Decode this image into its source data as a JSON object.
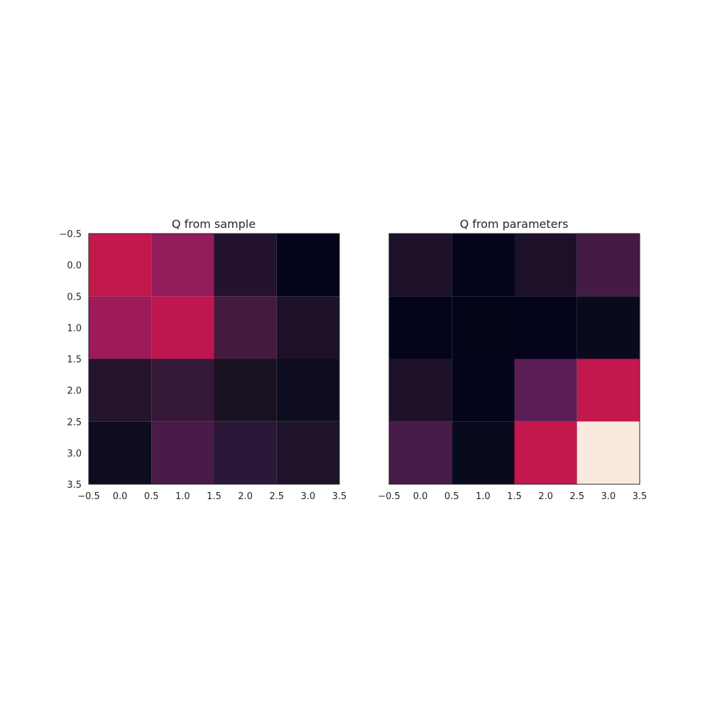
{
  "chart_data": [
    {
      "type": "heatmap",
      "title": "Q from sample",
      "xlim": [
        -0.5,
        3.5
      ],
      "ylim": [
        3.5,
        -0.5
      ],
      "x_ticks": [
        "−0.5",
        "0.0",
        "0.5",
        "1.0",
        "1.5",
        "2.0",
        "2.5",
        "3.0",
        "3.5"
      ],
      "y_ticks": [
        "−0.5",
        "0.0",
        "0.5",
        "1.0",
        "1.5",
        "2.0",
        "2.5",
        "3.0",
        "3.5"
      ],
      "show_y_ticks": true,
      "values": [
        [
          0.6,
          0.48,
          0.15,
          0.02
        ],
        [
          0.52,
          0.58,
          0.25,
          0.12
        ],
        [
          0.15,
          0.22,
          0.1,
          0.07
        ],
        [
          0.05,
          0.26,
          0.17,
          0.12
        ]
      ],
      "colors": [
        [
          "#c2194d",
          "#921b5a",
          "#231331",
          "#04041a"
        ],
        [
          "#9e1b5a",
          "#be1651",
          "#451a41",
          "#1d1229"
        ],
        [
          "#24142c",
          "#351737",
          "#19111f",
          "#0e0c1f"
        ],
        [
          "#0f0c20",
          "#4a1b49",
          "#2b1738",
          "#1f132c"
        ]
      ]
    },
    {
      "type": "heatmap",
      "title": "Q from parameters",
      "xlim": [
        -0.5,
        3.5
      ],
      "ylim": [
        3.5,
        -0.5
      ],
      "x_ticks": [
        "−0.5",
        "0.0",
        "0.5",
        "1.0",
        "1.5",
        "2.0",
        "2.5",
        "3.0",
        "3.5"
      ],
      "y_ticks": [],
      "show_y_ticks": false,
      "values": [
        [
          0.1,
          0.02,
          0.1,
          0.27
        ],
        [
          0.01,
          0.02,
          0.02,
          0.03
        ],
        [
          0.1,
          0.02,
          0.35,
          0.6
        ],
        [
          0.28,
          0.04,
          0.6,
          1.0
        ]
      ],
      "colors": [
        [
          "#1d1029",
          "#04051a",
          "#1c1129",
          "#441b45"
        ],
        [
          "#03041a",
          "#05051a",
          "#04041a",
          "#0a0a1f"
        ],
        [
          "#1c1129",
          "#04051a",
          "#5b1d56",
          "#c2184e"
        ],
        [
          "#471b48",
          "#0a0a1f",
          "#c2184e",
          "#f9e9df"
        ]
      ]
    }
  ]
}
